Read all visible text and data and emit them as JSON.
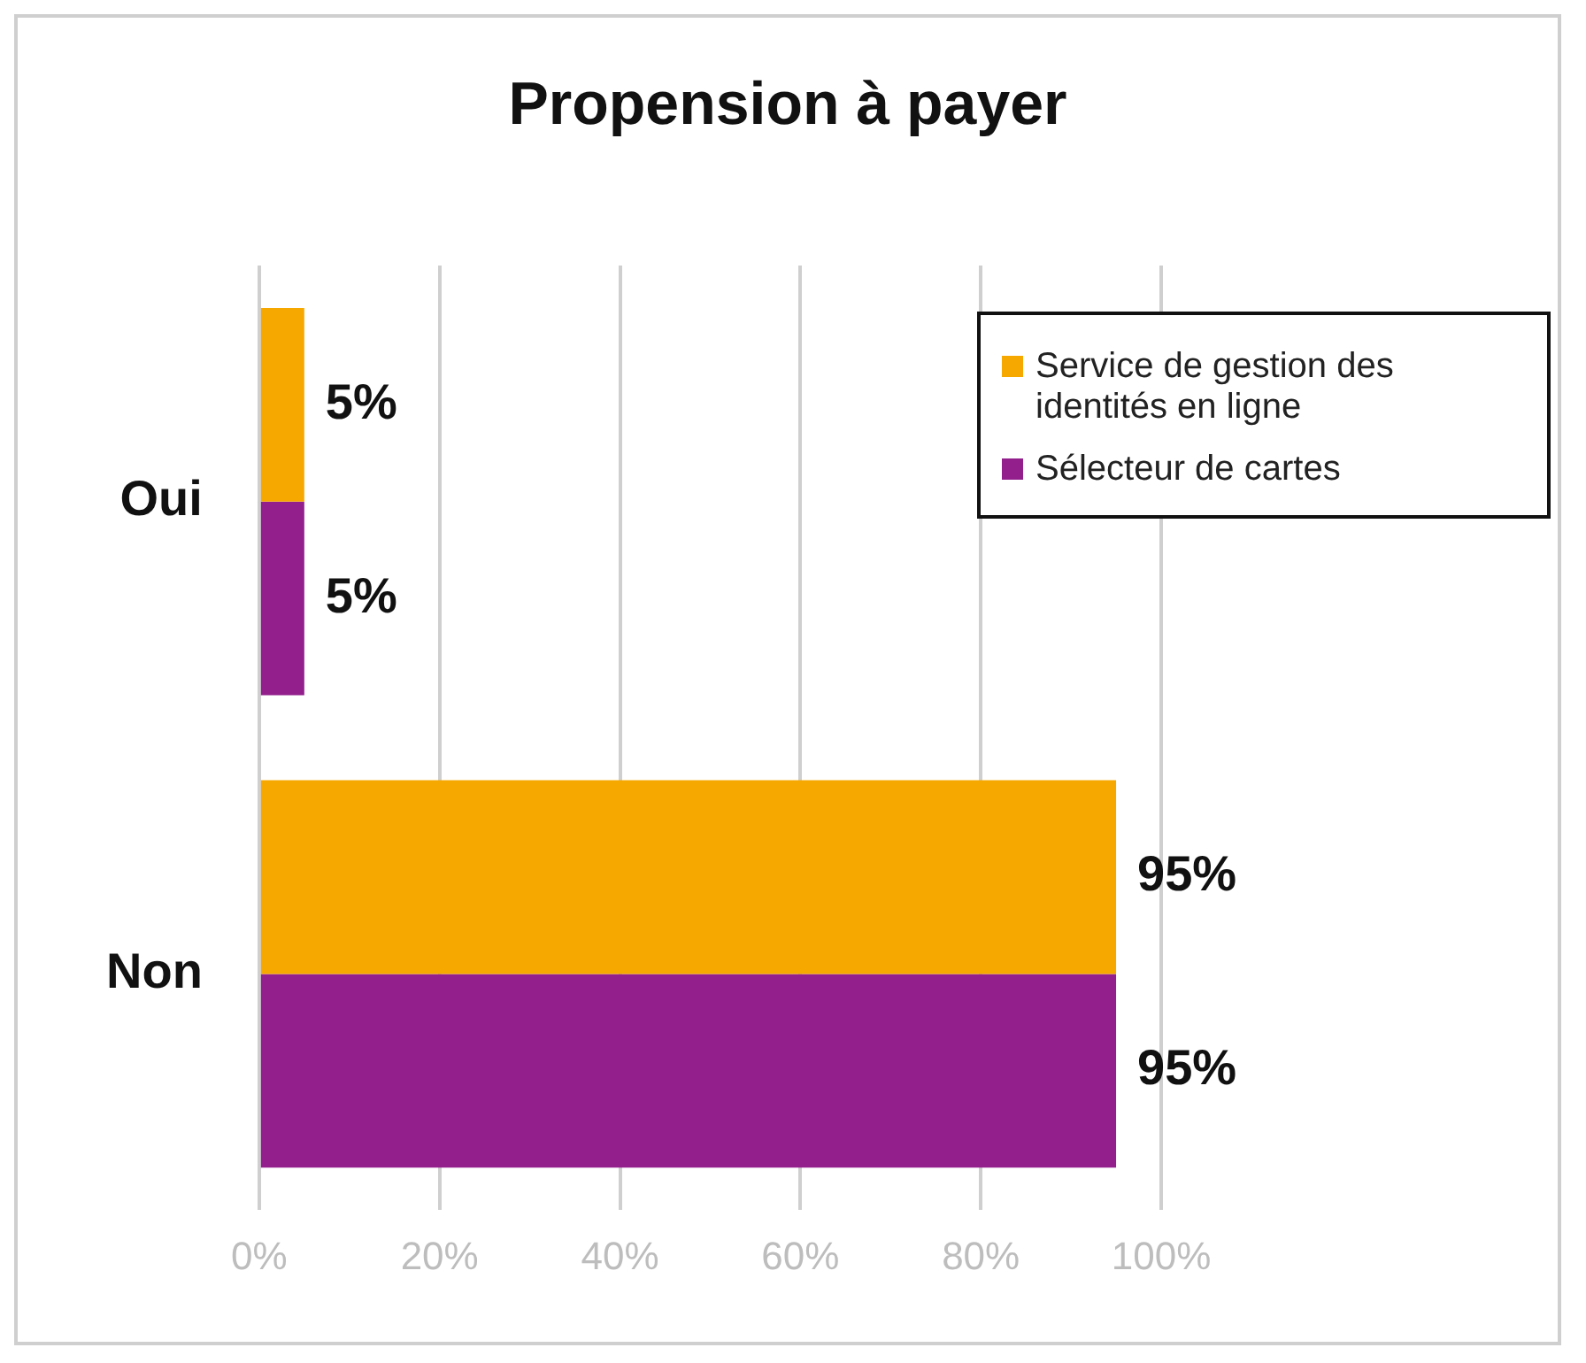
{
  "chart_data": {
    "type": "bar",
    "orientation": "horizontal",
    "title": "Propension à payer",
    "categories": [
      "Oui",
      "Non"
    ],
    "series": [
      {
        "name": "Service de gestion des identités en ligne",
        "color": "#f7a800",
        "values": [
          5,
          95
        ],
        "value_labels": [
          "5%",
          "95%"
        ]
      },
      {
        "name": "Sélecteur de cartes",
        "color": "#921f8c",
        "values": [
          5,
          95
        ],
        "value_labels": [
          "5%",
          "95%"
        ]
      }
    ],
    "xlim": [
      0,
      100
    ],
    "xticks": [
      {
        "value": 0,
        "label": "0%"
      },
      {
        "value": 20,
        "label": "20%"
      },
      {
        "value": 40,
        "label": "40%"
      },
      {
        "value": 60,
        "label": "60%"
      },
      {
        "value": 80,
        "label": "80%"
      },
      {
        "value": 100,
        "label": "100%"
      }
    ],
    "grid": "x",
    "legend": "top right"
  }
}
